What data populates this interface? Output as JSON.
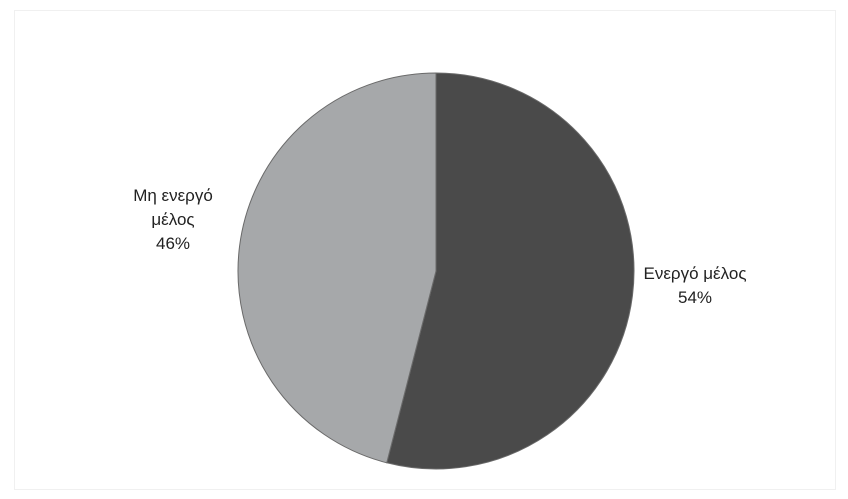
{
  "chart_data": {
    "type": "pie",
    "title": "",
    "slices": [
      {
        "label_lines": [
          "Ενεργό μέλος"
        ],
        "value": 54,
        "value_label": "54%",
        "color": "#4a4a4a"
      },
      {
        "label_lines": [
          "Μη ενεργό",
          "μέλος"
        ],
        "value": 46,
        "value_label": "46%",
        "color": "#a6a8aa"
      }
    ],
    "start": "12 o'clock",
    "direction": "clockwise",
    "legend": "none"
  }
}
